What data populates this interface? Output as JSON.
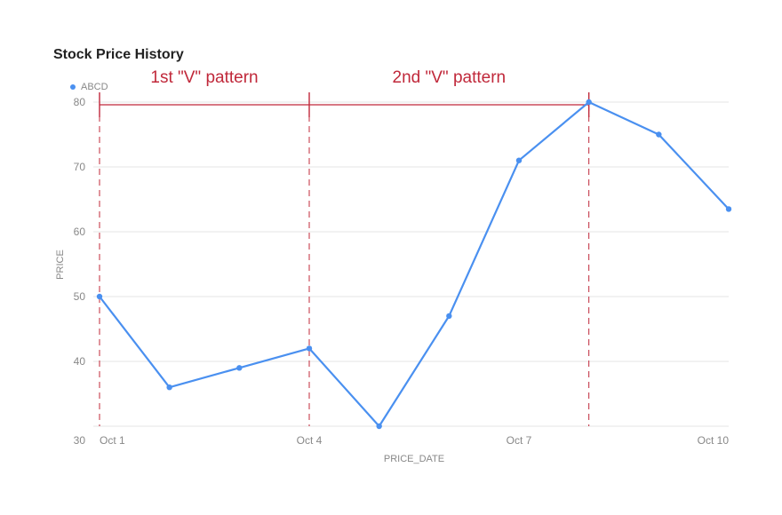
{
  "chart_data": {
    "type": "line",
    "title": "Stock Price History",
    "xlabel": "PRICE_DATE",
    "ylabel": "PRICE",
    "x": [
      "Oct 1",
      "Oct 2",
      "Oct 3",
      "Oct 4",
      "Oct 5",
      "Oct 6",
      "Oct 7",
      "Oct 8",
      "Oct 9",
      "Oct 10"
    ],
    "x_tick_labels": [
      "Oct 1",
      "Oct 4",
      "Oct 7",
      "Oct 10"
    ],
    "y_ticks": [
      30,
      40,
      50,
      60,
      70,
      80
    ],
    "ylim": [
      30,
      80
    ],
    "grid": true,
    "legend_position": "top-left",
    "series": [
      {
        "name": "ABCD",
        "color": "#4a90f0",
        "values": [
          50,
          36,
          39,
          42,
          30,
          47,
          71,
          80,
          75,
          63.5
        ]
      }
    ],
    "annotations": [
      {
        "text": "1st \"V\" pattern",
        "from": "Oct 1",
        "to": "Oct 4"
      },
      {
        "text": "2nd \"V\" pattern",
        "from": "Oct 4",
        "to": "Oct 8"
      }
    ],
    "annotation_color": "#c0283a"
  }
}
